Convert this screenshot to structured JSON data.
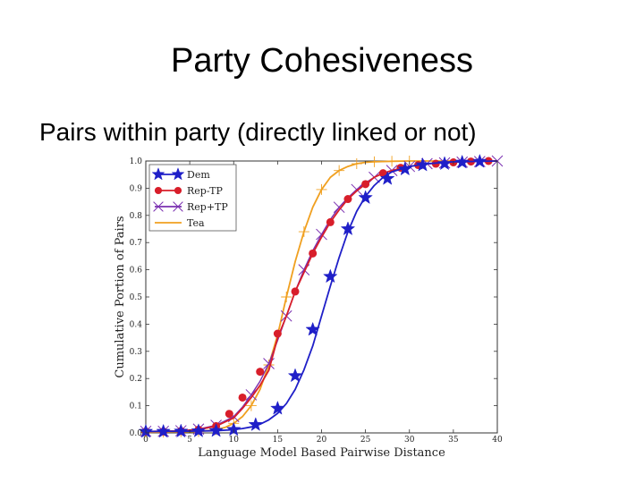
{
  "slide": {
    "title": "Party Cohesiveness",
    "subtitle": "Pairs within party (directly linked or not)"
  },
  "colors": {
    "dem": "#1f1fc8",
    "rep_minus_tp": "#d81e2a",
    "rep_plus_tp": "#7a2fb0",
    "tea": "#f0a020"
  },
  "chart_data": {
    "type": "line",
    "xlabel": "Language Model Based Pairwise Distance",
    "ylabel": "Cumulative Portion of Pairs",
    "xlim": [
      0,
      40
    ],
    "ylim": [
      0,
      1.0
    ],
    "x_ticks": [
      "0",
      "5",
      "10",
      "15",
      "20",
      "25",
      "30",
      "35",
      "40"
    ],
    "y_ticks": [
      "0.0",
      "0.1",
      "0.2",
      "0.3",
      "0.4",
      "0.5",
      "0.6",
      "0.7",
      "0.8",
      "0.9",
      "1.0"
    ],
    "grid": false,
    "legend_position": "top-left",
    "series": [
      {
        "name": "Dem",
        "marker": "star",
        "color_key": "dem",
        "line": {
          "x": [
            0,
            4,
            8,
            10,
            11,
            12,
            13,
            14,
            15,
            16,
            17,
            18,
            19,
            20,
            21,
            22,
            23,
            24,
            25,
            26,
            27,
            28,
            30,
            32,
            35,
            40
          ],
          "y": [
            0.005,
            0.006,
            0.008,
            0.012,
            0.016,
            0.022,
            0.032,
            0.048,
            0.072,
            0.108,
            0.16,
            0.232,
            0.32,
            0.43,
            0.54,
            0.645,
            0.74,
            0.815,
            0.87,
            0.91,
            0.94,
            0.96,
            0.98,
            0.99,
            0.997,
            1.0
          ]
        },
        "markers": {
          "x": [
            0,
            2,
            4,
            6,
            8,
            10,
            12.5,
            15,
            17,
            19,
            21,
            23,
            25,
            27.5,
            29.5,
            31.5,
            34,
            36,
            38
          ],
          "y": [
            0.005,
            0.005,
            0.006,
            0.007,
            0.008,
            0.012,
            0.03,
            0.09,
            0.21,
            0.38,
            0.575,
            0.75,
            0.865,
            0.935,
            0.97,
            0.985,
            0.99,
            0.995,
            0.998
          ]
        }
      },
      {
        "name": "Rep-TP",
        "marker": "circle",
        "color_key": "rep_minus_tp",
        "line": {
          "x": [
            0,
            4,
            6,
            8,
            10,
            11,
            12,
            13,
            14,
            15,
            16,
            17,
            18,
            19,
            20,
            21,
            22,
            23,
            24,
            25,
            26,
            27,
            28,
            30,
            32,
            35,
            40
          ],
          "y": [
            0.005,
            0.007,
            0.012,
            0.025,
            0.055,
            0.09,
            0.13,
            0.175,
            0.23,
            0.35,
            0.43,
            0.52,
            0.59,
            0.66,
            0.72,
            0.775,
            0.82,
            0.86,
            0.89,
            0.915,
            0.94,
            0.955,
            0.965,
            0.98,
            0.99,
            0.996,
            1.0
          ]
        },
        "markers": {
          "x": [
            0,
            2,
            4,
            6,
            8,
            9.5,
            11,
            13,
            15,
            17,
            19,
            21,
            23,
            25,
            27,
            29,
            31,
            33,
            35,
            37,
            39
          ],
          "y": [
            0.005,
            0.005,
            0.007,
            0.012,
            0.025,
            0.07,
            0.13,
            0.225,
            0.365,
            0.52,
            0.66,
            0.775,
            0.86,
            0.915,
            0.955,
            0.975,
            0.985,
            0.99,
            0.995,
            0.998,
            1.0
          ]
        }
      },
      {
        "name": "Rep+TP",
        "marker": "x",
        "color_key": "rep_plus_tp",
        "line": {
          "x": [
            0,
            4,
            6,
            8,
            10,
            11,
            12,
            13,
            14,
            15,
            16,
            17,
            18,
            19,
            20,
            21,
            22,
            23,
            24,
            25,
            26,
            27,
            28,
            30,
            32,
            35,
            40
          ],
          "y": [
            0.006,
            0.008,
            0.014,
            0.028,
            0.06,
            0.095,
            0.14,
            0.19,
            0.255,
            0.34,
            0.43,
            0.52,
            0.6,
            0.67,
            0.73,
            0.785,
            0.83,
            0.865,
            0.895,
            0.92,
            0.94,
            0.955,
            0.965,
            0.98,
            0.99,
            0.996,
            1.0
          ]
        },
        "markers": {
          "x": [
            0,
            2,
            4,
            6,
            8,
            10,
            12,
            14,
            16,
            18,
            20,
            22,
            24,
            26,
            28,
            30,
            32,
            34,
            36,
            38,
            40
          ],
          "y": [
            0.006,
            0.006,
            0.008,
            0.014,
            0.028,
            0.06,
            0.14,
            0.255,
            0.43,
            0.6,
            0.73,
            0.83,
            0.895,
            0.94,
            0.965,
            0.98,
            0.99,
            0.993,
            0.996,
            0.998,
            1.0
          ]
        }
      },
      {
        "name": "Tea",
        "marker": "plus",
        "color_key": "tea",
        "line": {
          "x": [
            0,
            6,
            8,
            9,
            10,
            11,
            12,
            13,
            14,
            15,
            16,
            17,
            18,
            19,
            20,
            21,
            22,
            23,
            24,
            25,
            26,
            27,
            28,
            30,
            32,
            40
          ],
          "y": [
            0.002,
            0.005,
            0.012,
            0.02,
            0.035,
            0.06,
            0.1,
            0.16,
            0.25,
            0.36,
            0.5,
            0.63,
            0.74,
            0.83,
            0.895,
            0.94,
            0.965,
            0.98,
            0.99,
            0.995,
            0.997,
            0.998,
            0.999,
            1.0,
            1.0,
            1.0
          ]
        },
        "markers": {
          "x": [
            0,
            2,
            4,
            6,
            8,
            10,
            12,
            14,
            16,
            18,
            20,
            22,
            24,
            26,
            28,
            30
          ],
          "y": [
            0.002,
            0.003,
            0.004,
            0.005,
            0.012,
            0.035,
            0.1,
            0.25,
            0.5,
            0.74,
            0.895,
            0.965,
            0.99,
            0.997,
            0.999,
            1.0
          ]
        }
      }
    ]
  }
}
